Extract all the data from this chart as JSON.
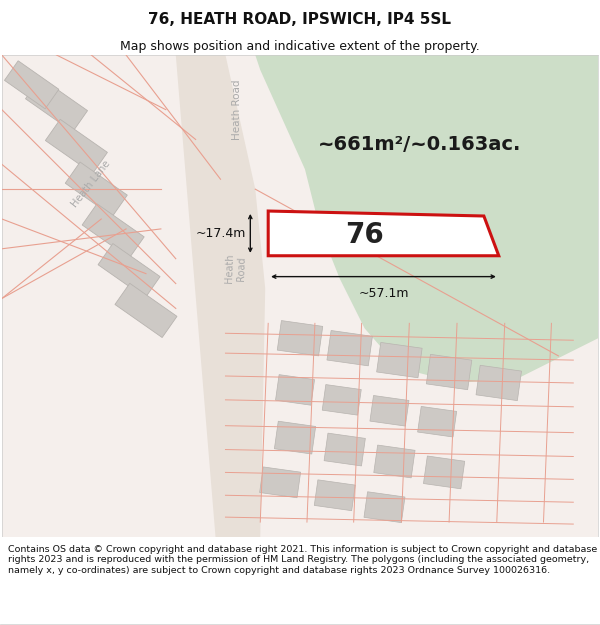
{
  "title": "76, HEATH ROAD, IPSWICH, IP4 5SL",
  "subtitle": "Map shows position and indicative extent of the property.",
  "footer": "Contains OS data © Crown copyright and database right 2021. This information is subject to Crown copyright and database rights 2023 and is reproduced with the permission of HM Land Registry. The polygons (including the associated geometry, namely x, y co-ordinates) are subject to Crown copyright and database rights 2023 Ordnance Survey 100026316.",
  "area_text": "~661m²/~0.163ac.",
  "width_label": "~57.1m",
  "height_label": "~17.4m",
  "property_number": "76",
  "bg_color": "#f5efec",
  "green_area_color": "#cddec8",
  "road_fill": "#e8e0d8",
  "building_fill": "#cdc9c5",
  "building_edge": "#b8b4b0",
  "prop_red": "#cc1111",
  "boundary_pink": "#e8a090",
  "street_color": "#aaaaaa",
  "title_fontsize": 11,
  "subtitle_fontsize": 9,
  "footer_fontsize": 6.8,
  "area_fontsize": 14,
  "prop_num_fontsize": 20,
  "dim_fontsize": 9
}
